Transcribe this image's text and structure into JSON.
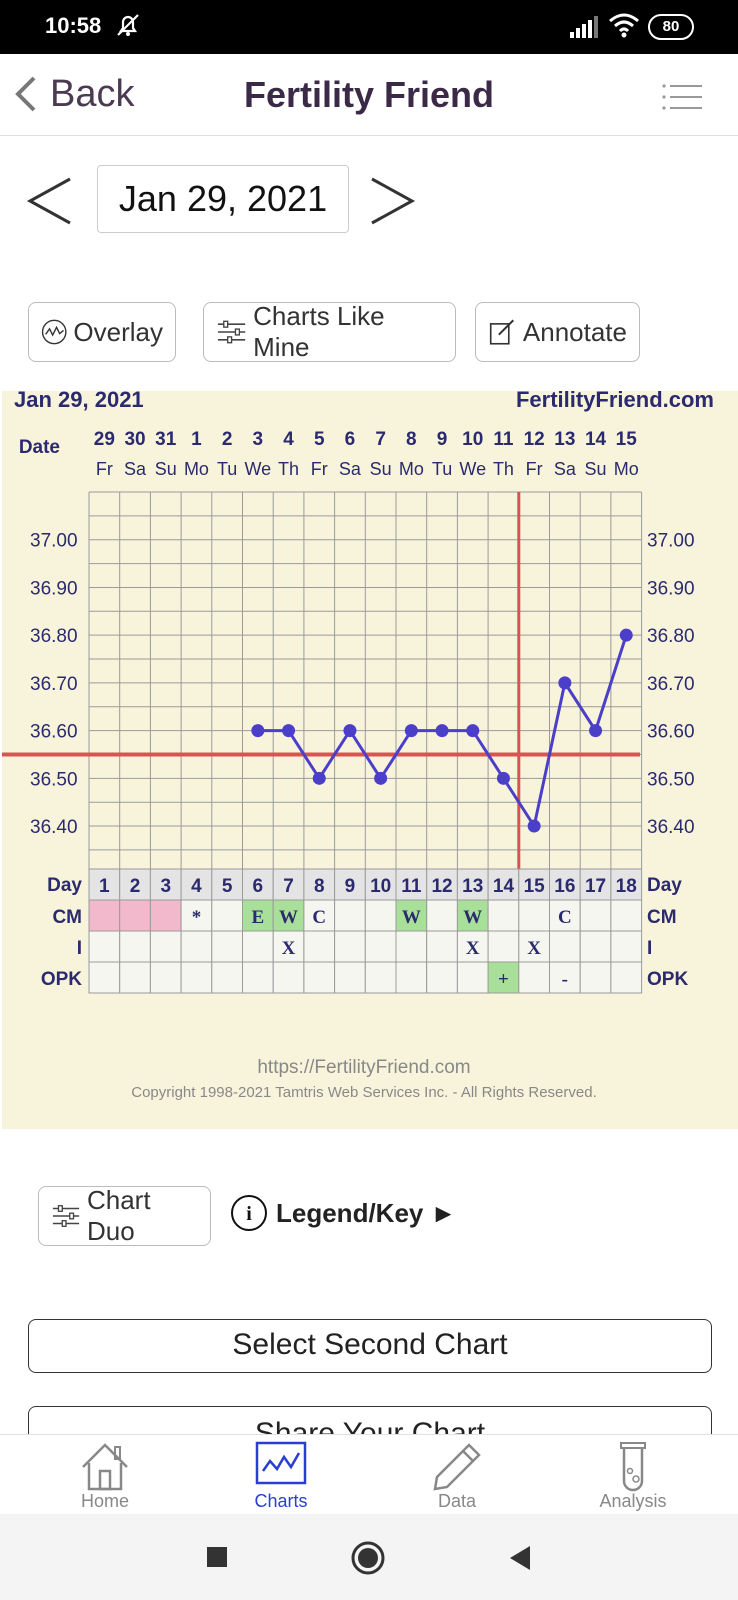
{
  "status_bar": {
    "time": "10:58",
    "battery": "80"
  },
  "app_bar": {
    "back_label": "Back",
    "title": "Fertility Friend"
  },
  "date_nav": {
    "date": "Jan 29, 2021"
  },
  "actions": {
    "overlay": "Overlay",
    "charts_like_mine": "Charts Like Mine",
    "annotate": "Annotate"
  },
  "chart_data": {
    "type": "line",
    "title": "Jan 29, 2021",
    "brand": "FertilityFriend.com",
    "date_label": "Date",
    "dates": [
      "29",
      "30",
      "31",
      "1",
      "2",
      "3",
      "4",
      "5",
      "6",
      "7",
      "8",
      "9",
      "10",
      "11",
      "12",
      "13",
      "14",
      "15"
    ],
    "weekdays": [
      "Fr",
      "Sa",
      "Su",
      "Mo",
      "Tu",
      "We",
      "Th",
      "Fr",
      "Sa",
      "Su",
      "Mo",
      "Tu",
      "We",
      "Th",
      "Fr",
      "Sa",
      "Su",
      "Mo"
    ],
    "y_ticks": [
      "37.00",
      "36.90",
      "36.80",
      "36.70",
      "36.60",
      "36.50",
      "36.40"
    ],
    "ylim": [
      36.31,
      37.1
    ],
    "temperatures": [
      null,
      null,
      null,
      null,
      null,
      36.6,
      36.6,
      36.5,
      36.6,
      36.5,
      36.6,
      36.6,
      36.6,
      36.5,
      36.4,
      36.7,
      36.6,
      36.8
    ],
    "coverline": 36.55,
    "ovulation_day": 15,
    "day_label": "Day",
    "days": [
      "1",
      "2",
      "3",
      "4",
      "5",
      "6",
      "7",
      "8",
      "9",
      "10",
      "11",
      "12",
      "13",
      "14",
      "15",
      "16",
      "17",
      "18"
    ],
    "rows": [
      {
        "label": "CM",
        "values": [
          "",
          "",
          "",
          "*",
          "",
          "E",
          "W",
          "C",
          "",
          "",
          "W",
          "",
          "W",
          "",
          "",
          "C",
          "",
          ""
        ],
        "colors": [
          "#f2b8cc",
          "#f2b8cc",
          "#f2b8cc",
          "",
          "",
          "#a8e09a",
          "#a8e09a",
          "",
          "",
          "",
          "#a8e09a",
          "",
          "#a8e09a",
          "",
          "",
          "",
          "",
          ""
        ]
      },
      {
        "label": "I",
        "values": [
          "",
          "",
          "",
          "",
          "",
          "",
          "X",
          "",
          "",
          "",
          "",
          "",
          "X",
          "",
          "X",
          "",
          "",
          ""
        ],
        "colors": []
      },
      {
        "label": "OPK",
        "values": [
          "",
          "",
          "",
          "",
          "",
          "",
          "",
          "",
          "",
          "",
          "",
          "",
          "",
          "+",
          "",
          "-",
          "",
          ""
        ],
        "colors": [
          "",
          "",
          "",
          "",
          "",
          "",
          "",
          "",
          "",
          "",
          "",
          "",
          "",
          "#a8e09a",
          "",
          "",
          "",
          ""
        ]
      }
    ],
    "url": "https://FertilityFriend.com",
    "copyright": "Copyright 1998-2021 Tamtris Web Services Inc. - All Rights Reserved.",
    "colors": {
      "background": "#f8f4dc",
      "line": "#4b3fc9",
      "coverline": "#d9534f",
      "grid": "#9a9a9a",
      "text": "#2b2a6e"
    }
  },
  "chart_duo": {
    "label": "Chart Duo"
  },
  "legend": {
    "label": "Legend/Key ►"
  },
  "buttons": {
    "select_second": "Select Second Chart",
    "share": "Share Your Chart"
  },
  "tabs": [
    {
      "label": "Home",
      "icon": "house-icon"
    },
    {
      "label": "Charts",
      "icon": "chart-icon"
    },
    {
      "label": "Data",
      "icon": "pencil-icon"
    },
    {
      "label": "Analysis",
      "icon": "test-tube-icon"
    }
  ]
}
